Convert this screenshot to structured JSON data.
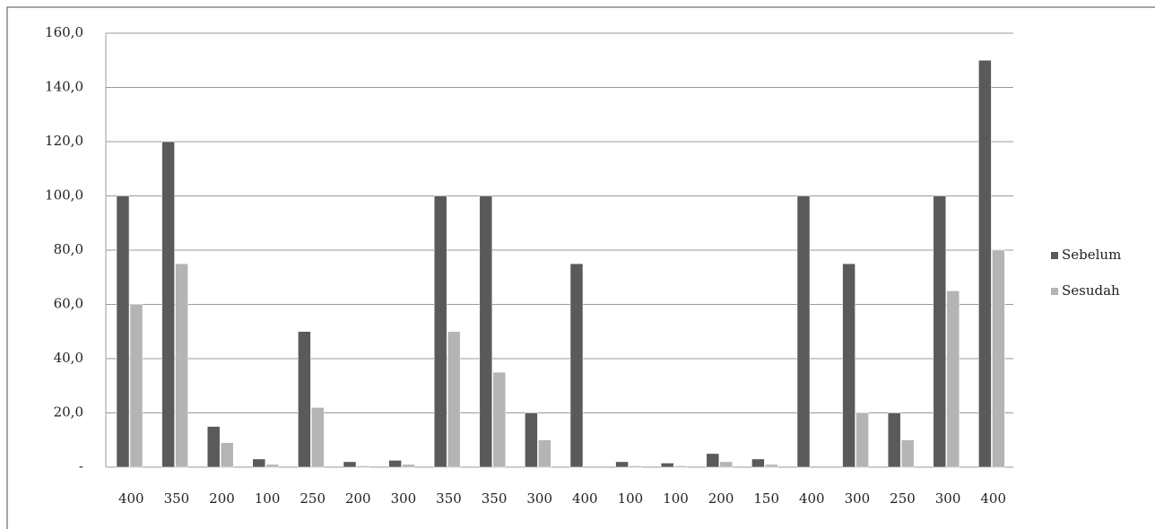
{
  "chart_data": {
    "type": "bar",
    "categories": [
      "400",
      "350",
      "200",
      "100",
      "250",
      "200",
      "300",
      "350",
      "350",
      "300",
      "400",
      "100",
      "100",
      "200",
      "150",
      "400",
      "300",
      "250",
      "300",
      "400"
    ],
    "series": [
      {
        "name": "Sebelum",
        "color": "#5a5a5a",
        "values": [
          100,
          120,
          15,
          3,
          50,
          2,
          2.5,
          100,
          100,
          20,
          75,
          2,
          1.5,
          5,
          3,
          100,
          75,
          20,
          100,
          150
        ]
      },
      {
        "name": "Sesudah",
        "color": "#b4b4b4",
        "values": [
          60,
          75,
          9,
          1,
          22,
          0.5,
          1,
          50,
          35,
          10,
          0,
          0.5,
          0.5,
          2,
          1,
          0,
          20,
          10,
          65,
          80
        ]
      }
    ],
    "ylim": [
      0,
      160
    ],
    "yticks": [
      {
        "value": 0,
        "label": "-"
      },
      {
        "value": 20,
        "label": "20,0"
      },
      {
        "value": 40,
        "label": "40,0"
      },
      {
        "value": 60,
        "label": "60,0"
      },
      {
        "value": 80,
        "label": "80,0"
      },
      {
        "value": 100,
        "label": "100,0"
      },
      {
        "value": 120,
        "label": "120,0"
      },
      {
        "value": 140,
        "label": "140,0"
      },
      {
        "value": 160,
        "label": "160,0"
      }
    ],
    "grid": true,
    "legend": "right"
  }
}
